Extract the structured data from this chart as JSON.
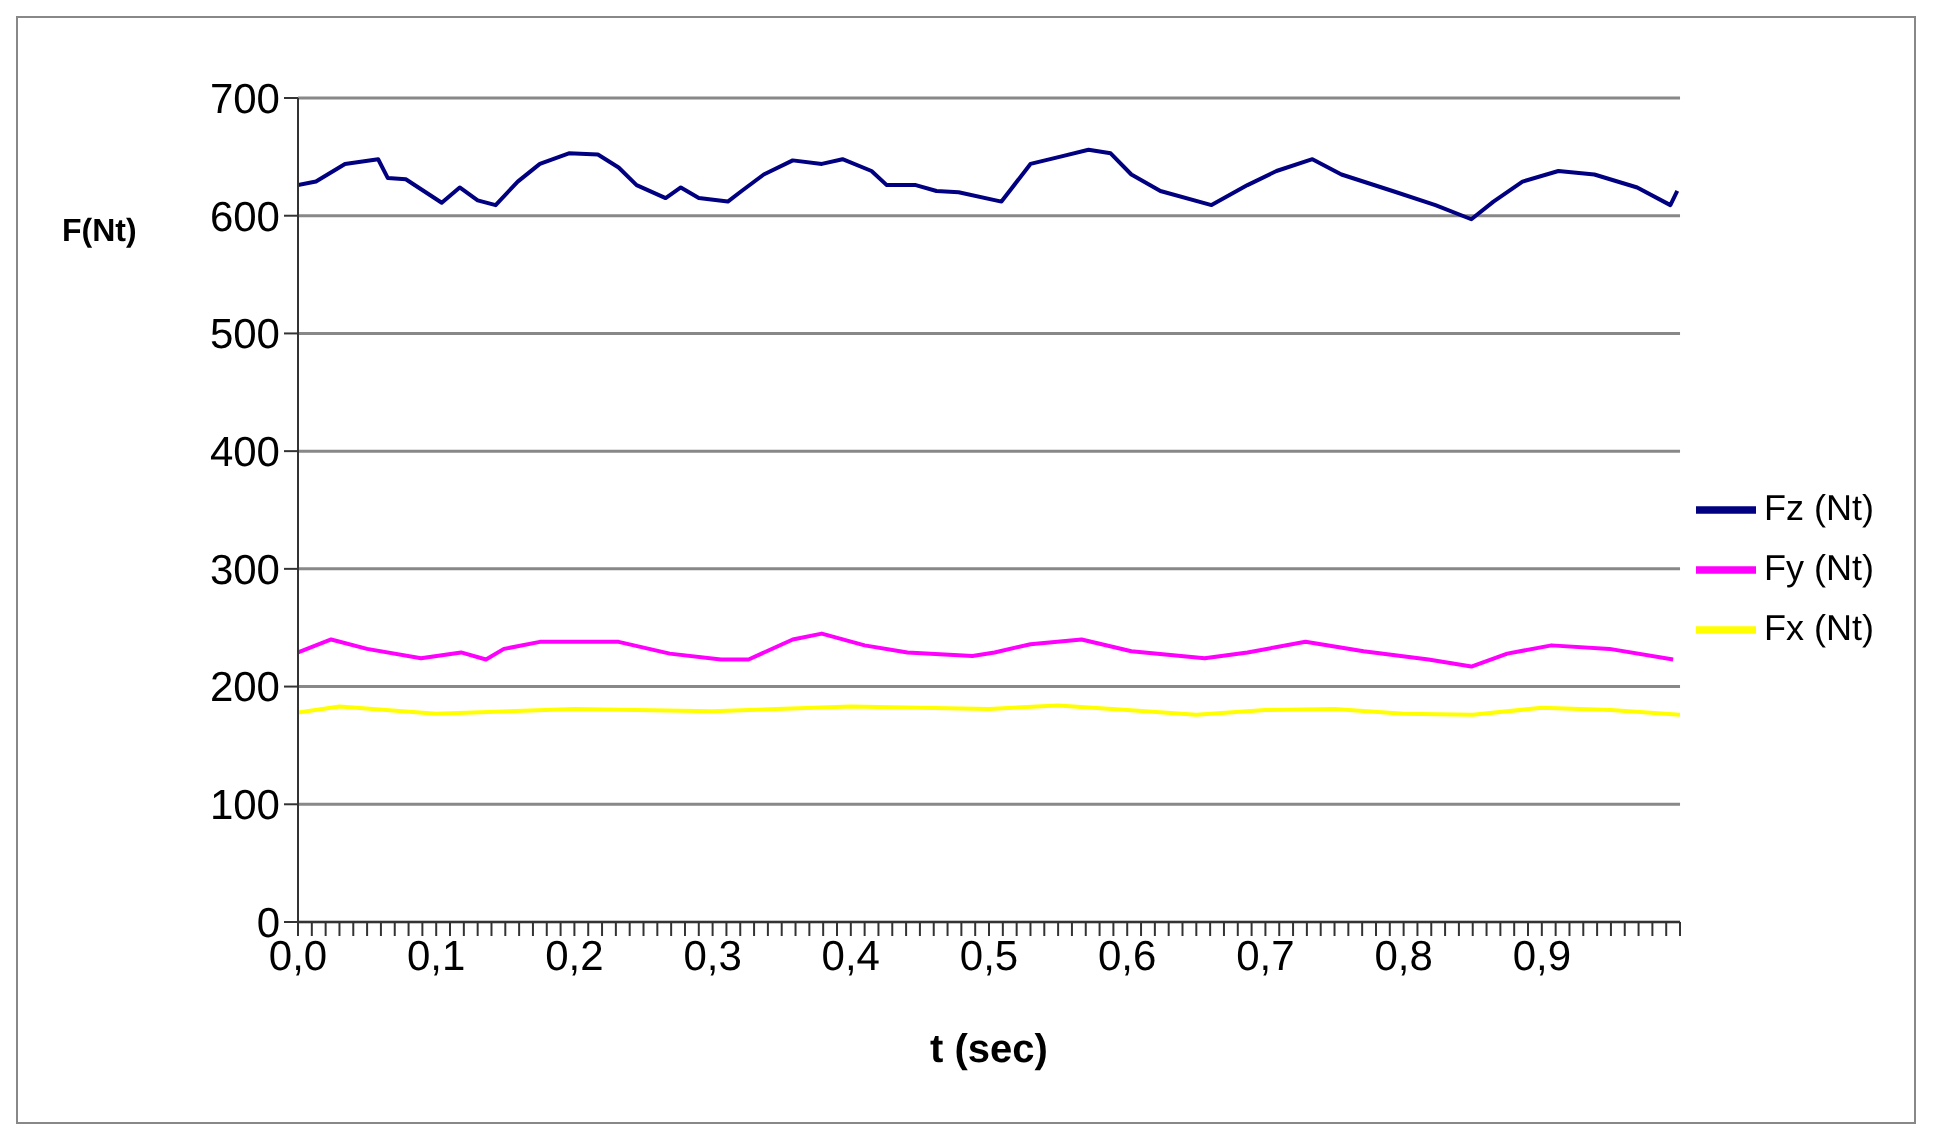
{
  "chart_data": {
    "type": "line",
    "xlabel": "t (sec)",
    "ylabel": "F(Nt)",
    "xlim": [
      0,
      1
    ],
    "ylim": [
      0,
      700
    ],
    "yticks": [
      0,
      100,
      200,
      300,
      400,
      500,
      600,
      700
    ],
    "xticks": [
      {
        "value": 0,
        "label": "0,0"
      },
      {
        "value": 0.01,
        "label": null
      },
      {
        "value": 0.02,
        "label": null
      },
      {
        "value": 0.03,
        "label": null
      },
      {
        "value": 0.04,
        "label": null
      },
      {
        "value": 0.05,
        "label": null
      },
      {
        "value": 0.06,
        "label": null
      },
      {
        "value": 0.07,
        "label": null
      },
      {
        "value": 0.08,
        "label": null
      },
      {
        "value": 0.09,
        "label": null
      },
      {
        "value": 0.1,
        "label": "0,1"
      },
      {
        "value": 0.11,
        "label": null
      },
      {
        "value": 0.12,
        "label": null
      },
      {
        "value": 0.13,
        "label": null
      },
      {
        "value": 0.14,
        "label": null
      },
      {
        "value": 0.15,
        "label": null
      },
      {
        "value": 0.16,
        "label": null
      },
      {
        "value": 0.17,
        "label": null
      },
      {
        "value": 0.18,
        "label": null
      },
      {
        "value": 0.19,
        "label": null
      },
      {
        "value": 0.2,
        "label": "0,2"
      },
      {
        "value": 0.21,
        "label": null
      },
      {
        "value": 0.22,
        "label": null
      },
      {
        "value": 0.23,
        "label": null
      },
      {
        "value": 0.24,
        "label": null
      },
      {
        "value": 0.25,
        "label": null
      },
      {
        "value": 0.26,
        "label": null
      },
      {
        "value": 0.27,
        "label": null
      },
      {
        "value": 0.28,
        "label": null
      },
      {
        "value": 0.29,
        "label": null
      },
      {
        "value": 0.3,
        "label": "0,3"
      },
      {
        "value": 0.31,
        "label": null
      },
      {
        "value": 0.32,
        "label": null
      },
      {
        "value": 0.33,
        "label": null
      },
      {
        "value": 0.34,
        "label": null
      },
      {
        "value": 0.35,
        "label": null
      },
      {
        "value": 0.36,
        "label": null
      },
      {
        "value": 0.37,
        "label": null
      },
      {
        "value": 0.38,
        "label": null
      },
      {
        "value": 0.39,
        "label": null
      },
      {
        "value": 0.4,
        "label": "0,4"
      },
      {
        "value": 0.41,
        "label": null
      },
      {
        "value": 0.42,
        "label": null
      },
      {
        "value": 0.43,
        "label": null
      },
      {
        "value": 0.44,
        "label": null
      },
      {
        "value": 0.45,
        "label": null
      },
      {
        "value": 0.46,
        "label": null
      },
      {
        "value": 0.47,
        "label": null
      },
      {
        "value": 0.48,
        "label": null
      },
      {
        "value": 0.49,
        "label": null
      },
      {
        "value": 0.5,
        "label": "0,5"
      },
      {
        "value": 0.51,
        "label": null
      },
      {
        "value": 0.52,
        "label": null
      },
      {
        "value": 0.53,
        "label": null
      },
      {
        "value": 0.54,
        "label": null
      },
      {
        "value": 0.55,
        "label": null
      },
      {
        "value": 0.56,
        "label": null
      },
      {
        "value": 0.57,
        "label": null
      },
      {
        "value": 0.58,
        "label": null
      },
      {
        "value": 0.59,
        "label": null
      },
      {
        "value": 0.6,
        "label": "0,6"
      },
      {
        "value": 0.61,
        "label": null
      },
      {
        "value": 0.62,
        "label": null
      },
      {
        "value": 0.63,
        "label": null
      },
      {
        "value": 0.64,
        "label": null
      },
      {
        "value": 0.65,
        "label": null
      },
      {
        "value": 0.66,
        "label": null
      },
      {
        "value": 0.67,
        "label": null
      },
      {
        "value": 0.68,
        "label": null
      },
      {
        "value": 0.69,
        "label": null
      },
      {
        "value": 0.7,
        "label": "0,7"
      },
      {
        "value": 0.71,
        "label": null
      },
      {
        "value": 0.72,
        "label": null
      },
      {
        "value": 0.73,
        "label": null
      },
      {
        "value": 0.74,
        "label": null
      },
      {
        "value": 0.75,
        "label": null
      },
      {
        "value": 0.76,
        "label": null
      },
      {
        "value": 0.77,
        "label": null
      },
      {
        "value": 0.78,
        "label": null
      },
      {
        "value": 0.79,
        "label": null
      },
      {
        "value": 0.8,
        "label": "0,8"
      },
      {
        "value": 0.81,
        "label": null
      },
      {
        "value": 0.82,
        "label": null
      },
      {
        "value": 0.83,
        "label": null
      },
      {
        "value": 0.84,
        "label": null
      },
      {
        "value": 0.85,
        "label": null
      },
      {
        "value": 0.86,
        "label": null
      },
      {
        "value": 0.87,
        "label": null
      },
      {
        "value": 0.88,
        "label": null
      },
      {
        "value": 0.89,
        "label": null
      },
      {
        "value": 0.9,
        "label": "0,9"
      },
      {
        "value": 0.91,
        "label": null
      },
      {
        "value": 0.92,
        "label": null
      },
      {
        "value": 0.93,
        "label": null
      },
      {
        "value": 0.94,
        "label": null
      },
      {
        "value": 0.95,
        "label": null
      },
      {
        "value": 0.96,
        "label": null
      },
      {
        "value": 0.97,
        "label": null
      },
      {
        "value": 0.98,
        "label": null
      },
      {
        "value": 0.99,
        "label": null
      },
      {
        "value": 1,
        "label": null
      }
    ],
    "grid": "y",
    "legend": "right",
    "marker": "none",
    "line_style": "solid",
    "series": [
      {
        "name": "Fz (Nt)",
        "color": "#000080",
        "x": [
          0,
          0.013,
          0.034,
          0.058,
          0.065,
          0.078,
          0.104,
          0.117,
          0.13,
          0.143,
          0.159,
          0.175,
          0.196,
          0.217,
          0.232,
          0.245,
          0.266,
          0.277,
          0.29,
          0.311,
          0.321,
          0.337,
          0.358,
          0.379,
          0.394,
          0.415,
          0.426,
          0.447,
          0.462,
          0.478,
          0.509,
          0.53,
          0.551,
          0.572,
          0.588,
          0.603,
          0.624,
          0.661,
          0.687,
          0.708,
          0.734,
          0.755,
          0.792,
          0.823,
          0.849,
          0.865,
          0.886,
          0.912,
          0.938,
          0.969,
          0.993,
          0.998
        ],
        "values": [
          626,
          629,
          644,
          648,
          632,
          631,
          611,
          624,
          613,
          609,
          629,
          644,
          653,
          652,
          641,
          626,
          615,
          624,
          615,
          612,
          621,
          635,
          647,
          644,
          648,
          638,
          626,
          626,
          621,
          620,
          612,
          644,
          650,
          656,
          653,
          635,
          621,
          609,
          626,
          638,
          648,
          635,
          621,
          609,
          597,
          612,
          629,
          638,
          635,
          624,
          609,
          621
        ]
      },
      {
        "name": "Fy (Nt)",
        "color": "#ff00ff",
        "x": [
          0,
          0.024,
          0.05,
          0.089,
          0.118,
          0.136,
          0.149,
          0.175,
          0.201,
          0.232,
          0.269,
          0.306,
          0.326,
          0.358,
          0.379,
          0.41,
          0.441,
          0.488,
          0.504,
          0.53,
          0.567,
          0.603,
          0.656,
          0.687,
          0.729,
          0.771,
          0.818,
          0.849,
          0.875,
          0.907,
          0.949,
          0.995
        ],
        "values": [
          229,
          240,
          232,
          224,
          229,
          223,
          232,
          238,
          238,
          238,
          228,
          223,
          223,
          240,
          245,
          235,
          229,
          226,
          229,
          236,
          240,
          230,
          224,
          229,
          238,
          230,
          223,
          217,
          228,
          235,
          232,
          223
        ]
      },
      {
        "name": "Fx (Nt)",
        "color": "#ffff00",
        "x": [
          0,
          0.03,
          0.1,
          0.2,
          0.3,
          0.4,
          0.5,
          0.55,
          0.6,
          0.65,
          0.7,
          0.75,
          0.8,
          0.85,
          0.9,
          0.95,
          1
        ],
        "values": [
          178,
          183,
          177,
          181,
          179,
          183,
          181,
          184,
          180,
          176,
          180,
          181,
          177,
          176,
          182,
          180,
          176
        ]
      }
    ]
  }
}
